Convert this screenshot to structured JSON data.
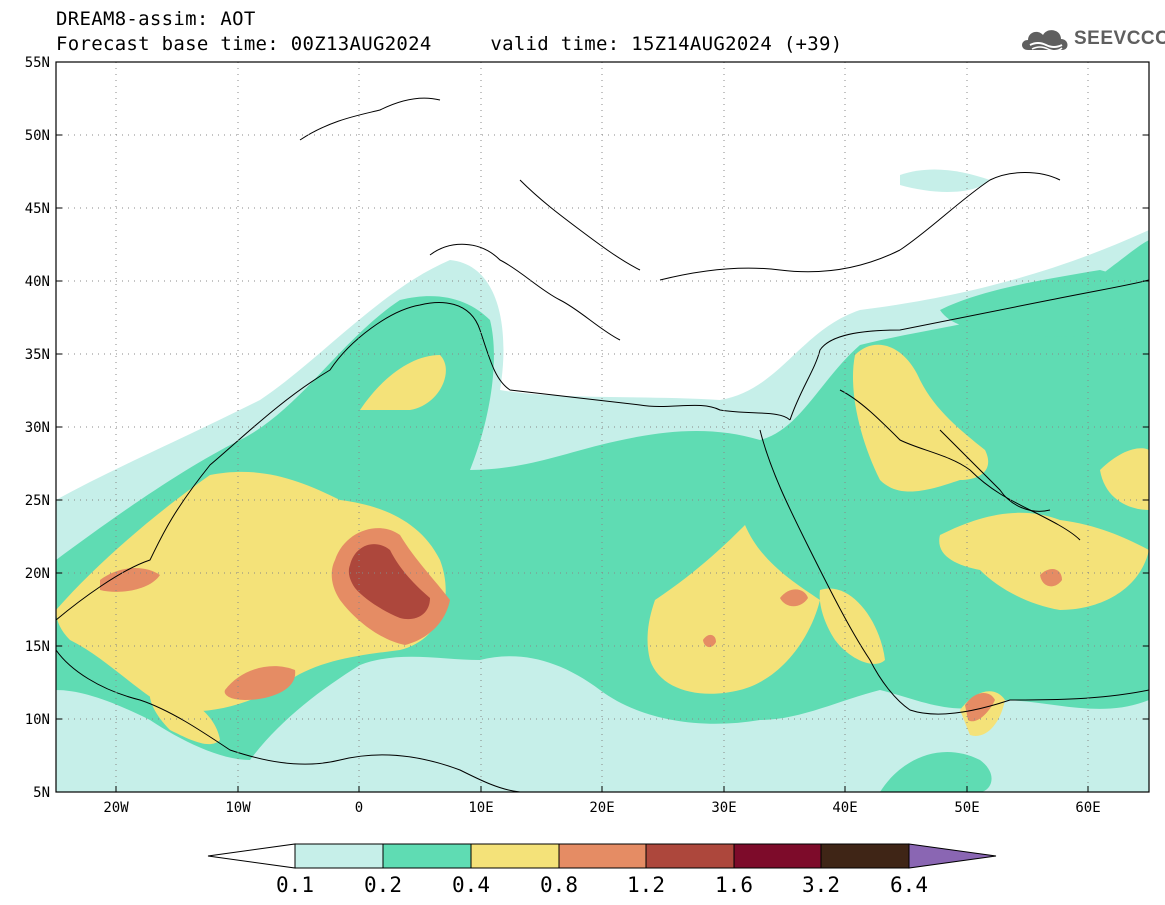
{
  "header": {
    "title": "DREAM8-assim: AOT",
    "subtitle": "Forecast base time: 00Z13AUG2024     valid time: 15Z14AUG2024 (+39)",
    "logo_text": "SEEVCCC"
  },
  "map": {
    "variable": "AOT",
    "projection": "equirectangular",
    "lon_range": [
      -25,
      65
    ],
    "lat_range": [
      5,
      55
    ],
    "lat_ticks": [
      "55N",
      "50N",
      "45N",
      "40N",
      "35N",
      "30N",
      "25N",
      "20N",
      "15N",
      "10N",
      "5N"
    ],
    "lon_ticks": [
      "20W",
      "10W",
      "0",
      "10E",
      "20E",
      "30E",
      "40E",
      "50E",
      "60E"
    ],
    "grid": "dotted"
  },
  "colorbar": {
    "labels": [
      "0.1",
      "0.2",
      "0.4",
      "0.8",
      "1.2",
      "1.6",
      "3.2",
      "6.4"
    ],
    "colors": [
      "#c6efe9",
      "#5fdcb3",
      "#f4e279",
      "#e58c64",
      "#ad473c",
      "#7d0b2a",
      "#3f2516",
      "#8a66b3"
    ]
  },
  "icons": {
    "logo": "cloud-icon"
  }
}
